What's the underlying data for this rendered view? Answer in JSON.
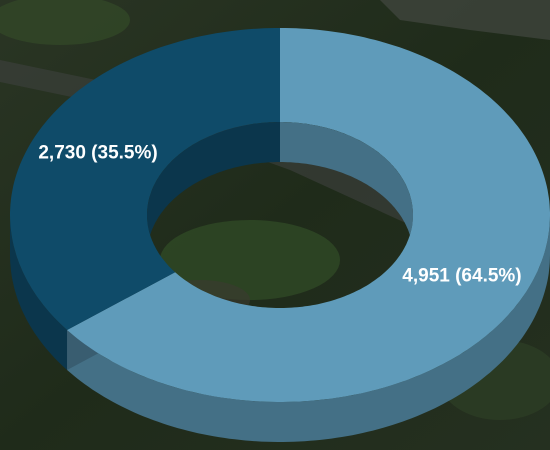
{
  "chart_data": {
    "type": "donut",
    "values": [
      4951,
      2730
    ],
    "value_labels": [
      "4,951 (64.5%)",
      "2,730 (35.5%)"
    ],
    "colors": [
      "#5f9bba",
      "#0f4b69"
    ]
  }
}
